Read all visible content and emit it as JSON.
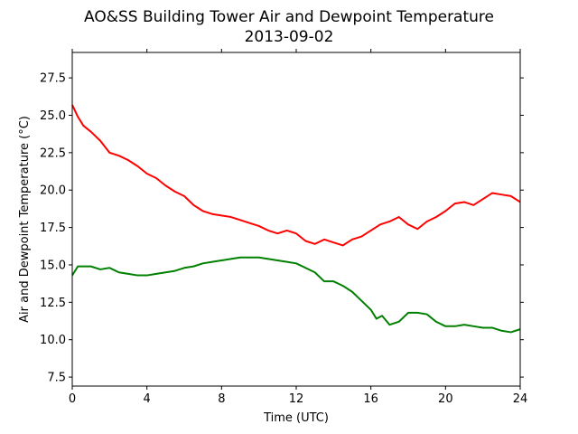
{
  "chart_data": {
    "type": "line",
    "title": "AO&SS Building Tower Air and Dewpoint Temperature",
    "subtitle": "2013-09-02",
    "xlabel": "Time (UTC)",
    "ylabel": "Air and Dewpoint Temperature (°C)",
    "xlim": [
      0,
      24
    ],
    "ylim": [
      6.9,
      29.2
    ],
    "xticks": [
      0,
      4,
      8,
      12,
      16,
      20,
      24
    ],
    "xtick_labels": [
      "0",
      "4",
      "8",
      "12",
      "16",
      "20",
      "24"
    ],
    "yticks": [
      7.5,
      10.0,
      12.5,
      15.0,
      17.5,
      20.0,
      22.5,
      25.0,
      27.5
    ],
    "ytick_labels": [
      "7.5",
      "10.0",
      "12.5",
      "15.0",
      "17.5",
      "20.0",
      "22.5",
      "25.0",
      "27.5"
    ],
    "grid": false,
    "series": [
      {
        "color": "#ff0000",
        "x": [
          0,
          0.3,
          0.6,
          1.0,
          1.5,
          2.0,
          2.5,
          3.0,
          3.5,
          4.0,
          4.5,
          5.0,
          5.5,
          6.0,
          6.5,
          7.0,
          7.5,
          8.0,
          8.5,
          9.0,
          9.5,
          10.0,
          10.5,
          11.0,
          11.5,
          12.0,
          12.5,
          13.0,
          13.5,
          14.0,
          14.5,
          15.0,
          15.5,
          16.0,
          16.5,
          17.0,
          17.5,
          18.0,
          18.5,
          19.0,
          19.5,
          20.0,
          20.5,
          21.0,
          21.5,
          22.0,
          22.5,
          23.0,
          23.5,
          24.0
        ],
        "y": [
          25.7,
          24.9,
          24.3,
          23.9,
          23.3,
          22.5,
          22.3,
          22.0,
          21.6,
          21.1,
          20.8,
          20.3,
          19.9,
          19.6,
          19.0,
          18.6,
          18.4,
          18.3,
          18.2,
          18.0,
          17.8,
          17.6,
          17.3,
          17.1,
          17.3,
          17.1,
          16.6,
          16.4,
          16.7,
          16.5,
          16.3,
          16.7,
          16.9,
          17.3,
          17.7,
          17.9,
          18.2,
          17.7,
          17.4,
          17.9,
          18.2,
          18.6,
          19.1,
          19.2,
          19.0,
          19.4,
          19.8,
          19.7,
          19.6,
          19.2
        ]
      },
      {
        "color": "#008000",
        "x": [
          0,
          0.3,
          0.6,
          1.0,
          1.5,
          2.0,
          2.5,
          3.0,
          3.5,
          4.0,
          4.5,
          5.0,
          5.5,
          6.0,
          6.5,
          7.0,
          7.5,
          8.0,
          8.5,
          9.0,
          9.5,
          10.0,
          10.5,
          11.0,
          11.5,
          12.0,
          12.5,
          13.0,
          13.5,
          14.0,
          14.5,
          15.0,
          15.5,
          16.0,
          16.3,
          16.6,
          17.0,
          17.5,
          18.0,
          18.5,
          19.0,
          19.5,
          20.0,
          20.5,
          21.0,
          21.5,
          22.0,
          22.5,
          23.0,
          23.5,
          24.0
        ],
        "y": [
          14.3,
          14.9,
          14.9,
          14.9,
          14.7,
          14.8,
          14.5,
          14.4,
          14.3,
          14.3,
          14.4,
          14.5,
          14.6,
          14.8,
          14.9,
          15.1,
          15.2,
          15.3,
          15.4,
          15.5,
          15.5,
          15.5,
          15.4,
          15.3,
          15.2,
          15.1,
          14.8,
          14.5,
          13.9,
          13.9,
          13.6,
          13.2,
          12.6,
          12.0,
          11.4,
          11.6,
          11.0,
          11.2,
          11.8,
          11.8,
          11.7,
          11.2,
          10.9,
          10.9,
          11.0,
          10.9,
          10.8,
          10.8,
          10.6,
          10.5,
          10.7
        ]
      }
    ]
  }
}
